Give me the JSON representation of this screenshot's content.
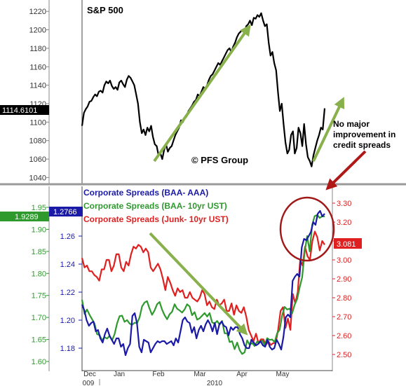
{
  "chart_data": [
    {
      "type": "line",
      "title": "S&P 500",
      "watermark": "© PFS Group",
      "y_ticks": [
        1040,
        1060,
        1080,
        1100,
        1120,
        1140,
        1160,
        1180,
        1200,
        1220
      ],
      "ylim": [
        1035,
        1230
      ],
      "last_value_label": "1114.6101",
      "annotation": "No major improvement in credit spreads",
      "annotation_lines": [
        "No major",
        "improvement in",
        "credit spreads"
      ],
      "grid": false,
      "series": [
        {
          "values": [
            1096,
            1110,
            1114,
            1117,
            1122,
            1123,
            1127,
            1130,
            1128,
            1133,
            1134,
            1132,
            1140,
            1144,
            1142,
            1145,
            1139,
            1136,
            1138,
            1135,
            1143,
            1145,
            1141,
            1138,
            1146,
            1150,
            1148,
            1144,
            1140,
            1130,
            1120,
            1100,
            1088,
            1092,
            1086,
            1094,
            1090,
            1096,
            1084,
            1076,
            1074,
            1064,
            1066,
            1060,
            1070,
            1076,
            1068,
            1072,
            1074,
            1080,
            1086,
            1090,
            1094,
            1102,
            1100,
            1104,
            1106,
            1112,
            1115,
            1118,
            1122,
            1124,
            1130,
            1128,
            1133,
            1138,
            1136,
            1140,
            1146,
            1150,
            1152,
            1156,
            1160,
            1164,
            1162,
            1166,
            1170,
            1174,
            1178,
            1180,
            1176,
            1182,
            1186,
            1192,
            1196,
            1198,
            1200,
            1196,
            1204,
            1206,
            1210,
            1205,
            1213,
            1212,
            1216,
            1214,
            1218,
            1210,
            1204,
            1206,
            1186,
            1172,
            1176,
            1164,
            1156,
            1132,
            1112,
            1120,
            1098,
            1078,
            1066,
            1070,
            1086,
            1090,
            1066,
            1072,
            1094,
            1088,
            1074,
            1098,
            1076,
            1062,
            1058,
            1052,
            1064,
            1072,
            1080,
            1086,
            1094,
            1092,
            1115
          ],
          "color": "#000000"
        }
      ]
    },
    {
      "type": "line",
      "legend": [
        {
          "label": "Corporate Spreads (BAA- AAA)",
          "color": "#1a1aa6"
        },
        {
          "label": "Corporate Spreads (BAA- 10yr UST)",
          "color": "#2e9a2e"
        },
        {
          "label": "Corporate Spreads (Junk- 10yr UST)",
          "color": "#e02020"
        }
      ],
      "x_month_labels": [
        "Dec",
        "Jan",
        "Feb",
        "Mar",
        "Apr",
        "May"
      ],
      "x_year_labels": [
        "009",
        "2010"
      ],
      "y_axes": [
        {
          "side": "left-outer",
          "color": "green",
          "ticks": [
            "1.60",
            "1.65",
            "1.70",
            "1.75",
            "1.80",
            "1.85",
            "1.90",
            "1.95"
          ],
          "current_value": "1.9289"
        },
        {
          "side": "left-inner",
          "color": "blue",
          "ticks": [
            "1.18",
            "1.20",
            "1.22",
            "1.24",
            "1.26"
          ],
          "current_value": "1.2766"
        },
        {
          "side": "right",
          "color": "red",
          "ticks": [
            "2.50",
            "2.60",
            "2.70",
            "2.80",
            "2.90",
            "3.00",
            "3.10",
            "3.20",
            "3.30"
          ],
          "current_value": "3.081"
        }
      ],
      "series": [
        {
          "name": "Corporate Spreads (BAA- AAA)",
          "color": "#1a1aa6",
          "axis": "left-inner",
          "values": [
            1.211,
            1.207,
            1.2,
            1.196,
            1.198,
            1.199,
            1.192,
            1.193,
            1.187,
            1.184,
            1.19,
            1.194,
            1.189,
            1.186,
            1.183,
            1.187,
            1.187,
            1.181,
            1.183,
            1.175,
            1.18,
            1.183,
            1.203,
            1.205,
            1.198,
            1.181,
            1.177,
            1.186,
            1.185,
            1.184,
            1.177,
            1.18,
            1.183,
            1.185,
            1.184,
            1.185,
            1.185,
            1.183,
            1.184,
            1.185,
            1.182,
            1.187,
            1.184,
            1.192,
            1.2,
            1.202,
            1.199,
            1.198,
            1.191,
            1.195,
            1.187,
            1.193,
            1.196,
            1.192,
            1.197,
            1.2,
            1.197,
            1.192,
            1.198,
            1.19,
            1.197,
            1.199,
            1.196,
            1.195,
            1.189,
            1.195,
            1.193,
            1.195,
            1.195,
            1.19,
            1.187,
            1.182,
            1.18,
            1.18,
            1.186,
            1.184,
            1.182,
            1.183,
            1.185,
            1.182,
            1.181,
            1.186,
            1.181,
            1.179,
            1.18,
            1.186,
            1.183,
            1.179,
            1.188,
            1.202,
            1.204,
            1.202,
            1.228,
            1.231,
            1.233,
            1.231,
            1.252,
            1.258,
            1.257,
            1.26,
            1.263,
            1.27,
            1.268,
            1.276,
            1.278,
            1.274,
            1.276
          ]
        },
        {
          "name": "Corporate Spreads (BAA- 10yr UST)",
          "color": "#2e9a2e",
          "axis": "left-outer",
          "values": [
            1.74,
            1.708,
            1.718,
            1.706,
            1.696,
            1.686,
            1.662,
            1.66,
            1.648,
            1.655,
            1.652,
            1.658,
            1.648,
            1.662,
            1.686,
            1.703,
            1.704,
            1.69,
            1.694,
            1.686,
            1.683,
            1.688,
            1.687,
            1.7,
            1.725,
            1.734,
            1.737,
            1.72,
            1.706,
            1.716,
            1.73,
            1.735,
            1.718,
            1.705,
            1.696,
            1.707,
            1.713,
            1.73,
            1.72,
            1.716,
            1.711,
            1.718,
            1.73,
            1.725,
            1.705,
            1.712,
            1.695,
            1.698,
            1.704,
            1.71,
            1.702,
            1.71,
            1.689,
            1.686,
            1.692,
            1.684,
            1.692,
            1.664,
            1.664,
            1.644,
            1.646,
            1.628,
            1.643,
            1.626,
            1.617,
            1.621,
            1.648,
            1.638,
            1.642,
            1.635,
            1.645,
            1.643,
            1.648,
            1.637,
            1.653,
            1.649,
            1.65,
            1.644,
            1.664,
            1.672,
            1.705,
            1.724,
            1.718,
            1.72,
            1.709,
            1.729,
            1.742,
            1.768,
            1.791,
            1.849,
            1.885,
            1.85,
            1.91,
            1.93,
            1.933,
            1.926,
            1.93,
            1.929
          ]
        },
        {
          "name": "Corporate Spreads (Junk- 10yr UST)",
          "color": "#e02020",
          "axis": "right",
          "values": [
            3.01,
            2.96,
            2.97,
            2.94,
            2.94,
            2.92,
            2.91,
            2.89,
            2.95,
            2.95,
            3.0,
            3.0,
            2.94,
            2.97,
            3.03,
            3.03,
            2.96,
            2.94,
            2.99,
            2.97,
            3.03,
            3.07,
            3.06,
            3.08,
            3.07,
            3.04,
            3.06,
            3.04,
            2.96,
            2.94,
            2.96,
            2.98,
            2.95,
            2.9,
            2.84,
            2.91,
            2.88,
            2.84,
            2.81,
            2.85,
            2.83,
            2.84,
            2.8,
            2.8,
            2.83,
            2.8,
            2.79,
            2.78,
            2.8,
            2.84,
            2.82,
            2.76,
            2.78,
            2.75,
            2.74,
            2.79,
            2.76,
            2.77,
            2.79,
            2.73,
            2.73,
            2.77,
            2.71,
            2.76,
            2.73,
            2.72,
            2.75,
            2.7,
            2.63,
            2.6,
            2.57,
            2.61,
            2.56,
            2.58,
            2.58,
            2.55,
            2.57,
            2.55,
            2.56,
            2.56,
            2.63,
            2.73,
            2.75,
            2.64,
            2.69,
            2.63,
            2.82,
            2.77,
            2.83,
            3.0,
            2.97,
            3.07,
            3.02,
            3.0,
            3.1,
            3.15,
            3.12,
            3.05,
            3.1,
            3.08
          ]
        }
      ]
    }
  ]
}
